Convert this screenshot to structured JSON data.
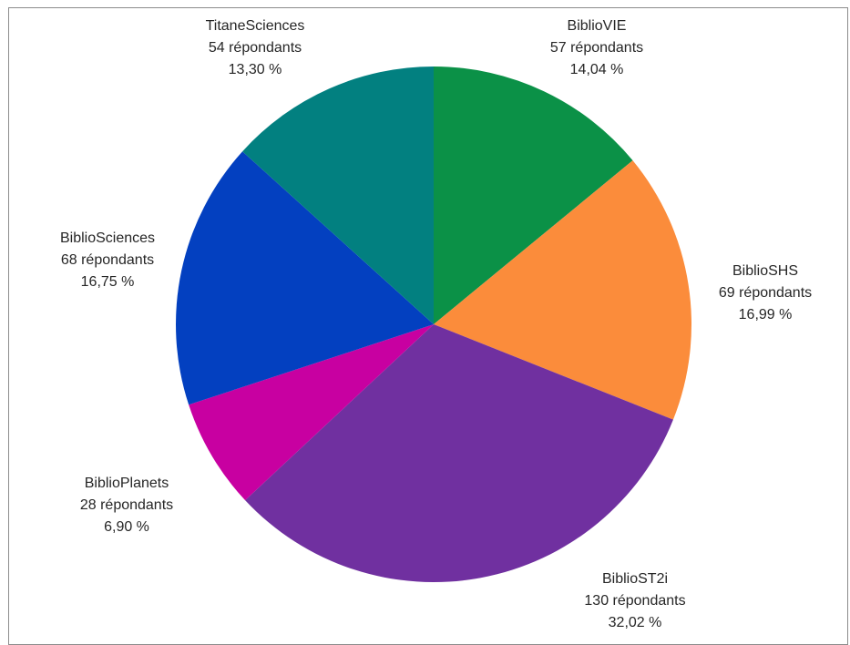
{
  "chart_data": {
    "type": "pie",
    "start_angle_deg": 0,
    "direction": "clockwise",
    "slices": [
      {
        "name": "BiblioVIE",
        "count_label": "57 répondants",
        "percent_label": "14,04 %",
        "value": 14.04,
        "color": "#0b9147"
      },
      {
        "name": "BiblioSHS",
        "count_label": "69 répondants",
        "percent_label": "16,99 %",
        "value": 16.99,
        "color": "#fb8c3b"
      },
      {
        "name": "BiblioST2i",
        "count_label": "130 répondants",
        "percent_label": "32,02 %",
        "value": 32.02,
        "color": "#7030a0"
      },
      {
        "name": "BiblioPlanets",
        "count_label": "28 répondants",
        "percent_label": "6,90 %",
        "value": 6.9,
        "color": "#c800a1"
      },
      {
        "name": "BiblioSciences",
        "count_label": "68 répondants",
        "percent_label": "16,75 %",
        "value": 16.75,
        "color": "#0340c0"
      },
      {
        "name": "TitaneSciences",
        "count_label": "54 répondants",
        "percent_label": "13,30 %",
        "value": 13.3,
        "color": "#028080"
      }
    ]
  }
}
